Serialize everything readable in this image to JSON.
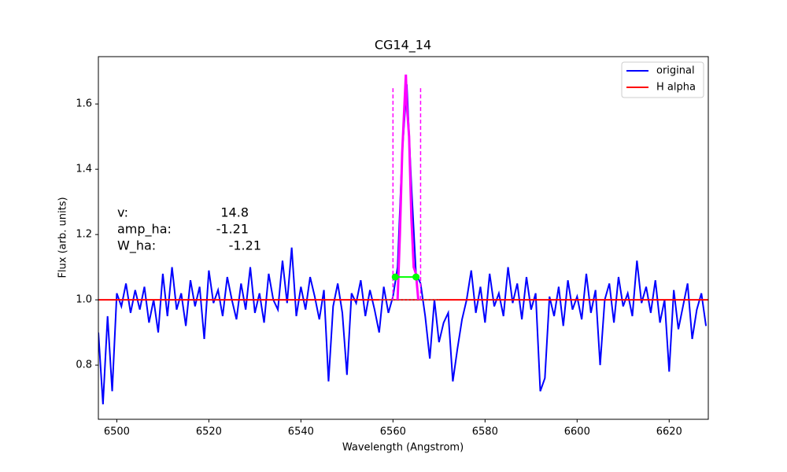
{
  "chart_data": {
    "type": "line",
    "title": "CG14_14",
    "xlabel": "Wavelength (Angstrom)",
    "ylabel": "Flux (arb. units)",
    "xlim": [
      6496,
      6628.5
    ],
    "ylim": [
      0.634,
      1.745
    ],
    "xticks": [
      6500,
      6520,
      6540,
      6560,
      6580,
      6600,
      6620
    ],
    "yticks": [
      0.8,
      {
        "value": 1,
        "label": "1.0"
      },
      1.2,
      1.4,
      1.6
    ],
    "legend": "upper right",
    "series": [
      {
        "name": "original",
        "color": "#0000ff",
        "x": [
          6496,
          6497,
          6498,
          6499,
          6500,
          6501,
          6502,
          6503,
          6504,
          6505,
          6506,
          6507,
          6508,
          6509,
          6510,
          6511,
          6512,
          6513,
          6514,
          6515,
          6516,
          6517,
          6518,
          6519,
          6520,
          6521,
          6522,
          6523,
          6524,
          6525,
          6526,
          6527,
          6528,
          6529,
          6530,
          6531,
          6532,
          6533,
          6534,
          6535,
          6536,
          6537,
          6538,
          6539,
          6540,
          6541,
          6542,
          6543,
          6544,
          6545,
          6546,
          6547,
          6548,
          6549,
          6550,
          6551,
          6552,
          6553,
          6554,
          6555,
          6556,
          6557,
          6558,
          6559,
          6560,
          6561,
          6562,
          6563,
          6564,
          6565,
          6566,
          6567,
          6568,
          6569,
          6570,
          6571,
          6572,
          6573,
          6574,
          6575,
          6576,
          6577,
          6578,
          6579,
          6580,
          6581,
          6582,
          6583,
          6584,
          6585,
          6586,
          6587,
          6588,
          6589,
          6590,
          6591,
          6592,
          6593,
          6594,
          6595,
          6596,
          6597,
          6598,
          6599,
          6600,
          6601,
          6602,
          6603,
          6604,
          6605,
          6606,
          6607,
          6608,
          6609,
          6610,
          6611,
          6612,
          6613,
          6614,
          6615,
          6616,
          6617,
          6618,
          6619,
          6620,
          6621,
          6622,
          6623,
          6624,
          6625,
          6626,
          6627,
          6628
        ],
        "values": [
          0.9,
          0.68,
          0.95,
          0.72,
          1.02,
          0.98,
          1.05,
          0.96,
          1.03,
          0.97,
          1.04,
          0.93,
          1.0,
          0.9,
          1.08,
          0.95,
          1.1,
          0.97,
          1.02,
          0.92,
          1.06,
          0.98,
          1.04,
          0.88,
          1.09,
          0.99,
          1.03,
          0.95,
          1.07,
          1.0,
          0.94,
          1.05,
          0.97,
          1.1,
          0.96,
          1.02,
          0.93,
          1.08,
          1.0,
          0.97,
          1.12,
          0.99,
          1.16,
          0.95,
          1.04,
          0.97,
          1.07,
          1.01,
          0.94,
          1.03,
          0.75,
          0.98,
          1.05,
          0.96,
          0.77,
          1.02,
          0.99,
          1.06,
          0.95,
          1.03,
          0.97,
          0.9,
          1.04,
          0.96,
          1.01,
          1.1,
          1.45,
          1.66,
          1.35,
          1.08,
          1.05,
          0.95,
          0.82,
          1.0,
          0.87,
          0.93,
          0.96,
          0.75,
          0.85,
          0.94,
          1.0,
          1.09,
          0.96,
          1.04,
          0.93,
          1.08,
          0.98,
          1.02,
          0.95,
          1.1,
          0.99,
          1.05,
          0.94,
          1.07,
          0.97,
          1.02,
          0.72,
          0.76,
          1.01,
          0.95,
          1.04,
          0.92,
          1.06,
          0.97,
          1.01,
          0.94,
          1.08,
          0.96,
          1.03,
          0.8,
          1.0,
          1.05,
          0.93,
          1.07,
          0.98,
          1.02,
          0.95,
          1.12,
          0.99,
          1.04,
          0.96,
          1.06,
          0.93,
          1.0,
          0.78,
          1.03,
          0.91,
          0.98,
          1.05,
          0.88,
          0.97,
          1.02,
          0.92
        ]
      },
      {
        "name": "H alpha",
        "color": "#ff0000",
        "x": [
          6496,
          6628.5
        ],
        "values": [
          1,
          1
        ]
      }
    ],
    "baseline": {
      "color": "#808080",
      "x": [
        6557,
        6570
      ],
      "values": [
        1,
        1
      ]
    },
    "line_fit": {
      "color": "#ff00ff",
      "x": [
        6561,
        6561.5,
        6562,
        6562.5,
        6562.8,
        6563,
        6563.5,
        6564,
        6564.5,
        6565,
        6565.5
      ],
      "values": [
        1.0,
        1.2,
        1.45,
        1.6,
        1.69,
        1.6,
        1.5,
        1.25,
        1.1,
        1.08,
        1.0
      ]
    },
    "window": {
      "color": "#ff00ff",
      "x": [
        6560,
        6566
      ],
      "ylim": [
        1.0,
        1.65
      ]
    },
    "fwhm": {
      "color": "#00ff00",
      "x": [
        6560.5,
        6565
      ],
      "values": [
        1.07,
        1.07
      ]
    },
    "annotations": [
      {
        "label": "v:",
        "value": "14.8"
      },
      {
        "label": "amp_ha:",
        "value": "-1.21"
      },
      {
        "label": "W_ha:",
        "value": "-1.21"
      }
    ]
  }
}
